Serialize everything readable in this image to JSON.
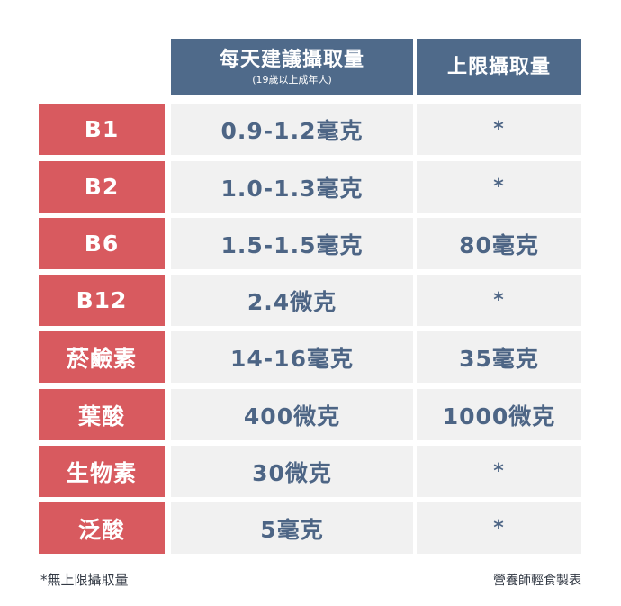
{
  "header": {
    "col2_title": "每天建議攝取量",
    "col2_subtitle": "(19歲以上成年人)",
    "col3_title": "上限攝取量"
  },
  "rows": [
    {
      "name": "B1",
      "daily": "0.9-1.2毫克",
      "limit": "*"
    },
    {
      "name": "B2",
      "daily": "1.0-1.3毫克",
      "limit": "*"
    },
    {
      "name": "B6",
      "daily": "1.5-1.5毫克",
      "limit": "80毫克"
    },
    {
      "name": "B12",
      "daily": "2.4微克",
      "limit": "*"
    },
    {
      "name": "菸鹼素",
      "daily": "14-16毫克",
      "limit": "35毫克"
    },
    {
      "name": "葉酸",
      "daily": "400微克",
      "limit": "1000微克"
    },
    {
      "name": "生物素",
      "daily": "30微克",
      "limit": "*"
    },
    {
      "name": "泛酸",
      "daily": "5毫克",
      "limit": "*"
    }
  ],
  "footer": {
    "note": "*無上限攝取量",
    "credit": "營養師輕食製表"
  },
  "colors": {
    "header_bg": "#4f6a8a",
    "label_bg": "#d85a5f",
    "cell_bg": "#f1f1f1",
    "value_text": "#4d6585"
  }
}
